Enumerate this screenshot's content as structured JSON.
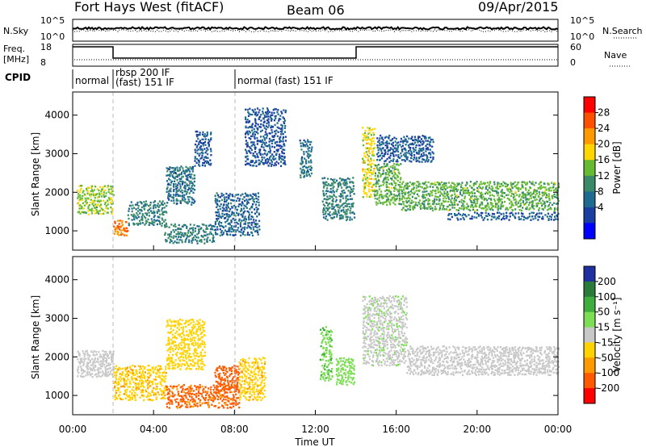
{
  "header": {
    "station": "Fort Hays West (fitACF)",
    "beam": "Beam 06",
    "date": "09/Apr/2015"
  },
  "nsky_panel": {
    "left_label": "N.Sky",
    "right_label": "N.Search",
    "left_ticks": [
      "10^5",
      "10^0"
    ],
    "right_ticks": [
      "10^5",
      "10^0"
    ]
  },
  "freq_panel": {
    "left_label": "Freq.",
    "left_unit": "[MHz]",
    "right_label": "Nave",
    "left_ticks": [
      "18",
      "8"
    ],
    "right_ticks": [
      "60",
      "0"
    ]
  },
  "cpid": {
    "label": "CPID",
    "segments": [
      {
        "start_hour": 0,
        "text_line1": "normal",
        "text_line2": ""
      },
      {
        "start_hour": 2,
        "text_line1": "rbsp 200 IF",
        "text_line2": "(fast) 151 IF"
      },
      {
        "start_hour": 8,
        "text_line1": "normal (fast) 151 IF",
        "text_line2": ""
      }
    ]
  },
  "power_colorbar": {
    "label": "Power [dB]",
    "ticks": [
      "28",
      "24",
      "20",
      "16",
      "12",
      "8",
      "4"
    ],
    "colors": [
      "#ff0000",
      "#ff5000",
      "#ff9900",
      "#ffd600",
      "#66bb33",
      "#3a8a6a",
      "#1f6b8f",
      "#1a3fa0",
      "#0000ff"
    ]
  },
  "velocity_colorbar": {
    "label": "Velocity [m s⁻¹]",
    "ticks": [
      "200",
      "100",
      "50",
      "15",
      "-15",
      "-50",
      "-100",
      "-200"
    ],
    "colors": [
      "#2030a0",
      "#2a7a3a",
      "#3fae3f",
      "#7ddd55",
      "#c8c8c8",
      "#ffd200",
      "#ff9900",
      "#ff5a00",
      "#ff0000"
    ]
  },
  "chart_data": [
    {
      "type": "heatmap",
      "name": "Power",
      "xlabel": "Time UT",
      "ylabel": "Slant Range [km]",
      "xlim": [
        0,
        24
      ],
      "ylim": [
        500,
        4600
      ],
      "x_ticks": [
        "00:00",
        "04:00",
        "08:00",
        "12:00",
        "16:00",
        "20:00",
        "00:00"
      ],
      "y_ticks": [
        1000,
        2000,
        3000,
        4000
      ],
      "bands": [
        {
          "t0": 0.2,
          "t1": 2.0,
          "r0": 1450,
          "r1": 2200,
          "level": 16
        },
        {
          "t0": 2.0,
          "t1": 2.7,
          "r0": 900,
          "r1": 1300,
          "level": 24
        },
        {
          "t0": 2.7,
          "t1": 4.6,
          "r0": 1150,
          "r1": 1800,
          "level": 10
        },
        {
          "t0": 4.6,
          "t1": 6.0,
          "r0": 1700,
          "r1": 2700,
          "level": 8
        },
        {
          "t0": 6.0,
          "t1": 6.8,
          "r0": 2700,
          "r1": 3600,
          "level": 6
        },
        {
          "t0": 4.5,
          "t1": 7.0,
          "r0": 700,
          "r1": 1200,
          "level": 10
        },
        {
          "t0": 7.0,
          "t1": 9.2,
          "r0": 900,
          "r1": 2000,
          "level": 7
        },
        {
          "t0": 8.5,
          "t1": 10.5,
          "r0": 2700,
          "r1": 4200,
          "level": 5
        },
        {
          "t0": 11.2,
          "t1": 11.8,
          "r0": 2400,
          "r1": 3400,
          "level": 8
        },
        {
          "t0": 12.3,
          "t1": 13.9,
          "r0": 1300,
          "r1": 2400,
          "level": 10
        },
        {
          "t0": 14.3,
          "t1": 14.9,
          "r0": 1900,
          "r1": 3700,
          "level": 18
        },
        {
          "t0": 14.9,
          "t1": 16.2,
          "r0": 1700,
          "r1": 2800,
          "level": 14
        },
        {
          "t0": 15.0,
          "t1": 17.8,
          "r0": 2800,
          "r1": 3500,
          "level": 6
        },
        {
          "t0": 16.2,
          "t1": 24.0,
          "r0": 1550,
          "r1": 2300,
          "level": 14
        },
        {
          "t0": 18.5,
          "t1": 24.0,
          "r0": 1300,
          "r1": 1500,
          "level": 6
        }
      ]
    },
    {
      "type": "heatmap",
      "name": "Velocity",
      "xlabel": "Time UT",
      "ylabel": "Slant Range [km]",
      "xlim": [
        0,
        24
      ],
      "ylim": [
        500,
        4600
      ],
      "x_ticks": [
        "00:00",
        "04:00",
        "08:00",
        "12:00",
        "16:00",
        "20:00",
        "00:00"
      ],
      "y_ticks": [
        1000,
        2000,
        3000,
        4000
      ],
      "bands": [
        {
          "t0": 0.2,
          "t1": 2.0,
          "r0": 1500,
          "r1": 2200,
          "v": 0
        },
        {
          "t0": 2.0,
          "t1": 4.6,
          "r0": 900,
          "r1": 1800,
          "v": -40
        },
        {
          "t0": 4.6,
          "t1": 6.5,
          "r0": 1700,
          "r1": 3000,
          "v": -30
        },
        {
          "t0": 4.6,
          "t1": 8.2,
          "r0": 700,
          "r1": 1300,
          "v": -110
        },
        {
          "t0": 7.0,
          "t1": 8.2,
          "r0": 1100,
          "r1": 1800,
          "v": -150
        },
        {
          "t0": 8.2,
          "t1": 9.5,
          "r0": 900,
          "r1": 2000,
          "v": -40
        },
        {
          "t0": 12.2,
          "t1": 12.8,
          "r0": 1400,
          "r1": 2800,
          "v": 40
        },
        {
          "t0": 13.0,
          "t1": 13.9,
          "r0": 1300,
          "r1": 2000,
          "v": 30
        },
        {
          "t0": 14.3,
          "t1": 16.5,
          "r0": 1800,
          "r1": 3600,
          "v": 5
        },
        {
          "t0": 16.5,
          "t1": 24.0,
          "r0": 1550,
          "r1": 2300,
          "v": 0
        }
      ]
    }
  ]
}
